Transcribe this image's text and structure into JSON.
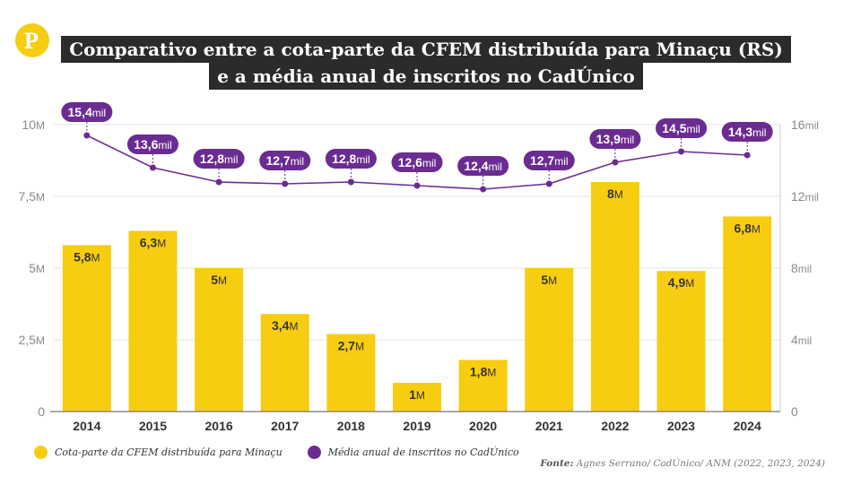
{
  "brand": {
    "logo_letter": "P",
    "brand_color": "#f7cd12"
  },
  "title": {
    "line1": "Comparativo entre a cota-parte da CFEM distribuída para Minaçu (RS)",
    "line2": "e a média anual de inscritos no CadÚnico"
  },
  "chart_data": {
    "type": "bar",
    "categories": [
      "2014",
      "2015",
      "2016",
      "2017",
      "2018",
      "2019",
      "2020",
      "2021",
      "2022",
      "2023",
      "2024"
    ],
    "series": [
      {
        "name": "Cota-parte da CFEM distribuída para Minaçu",
        "type": "bar",
        "axis": "left",
        "color": "#f7cd12",
        "values": [
          5.8,
          6.3,
          5,
          3.4,
          2.7,
          1,
          1.8,
          5,
          8,
          4.9,
          6.8
        ],
        "labels": [
          [
            "5,8",
            "M"
          ],
          [
            "6,3",
            "M"
          ],
          [
            "5",
            "M"
          ],
          [
            "3,4",
            "M"
          ],
          [
            "2,7",
            "M"
          ],
          [
            "1",
            "M"
          ],
          [
            "1,8",
            "M"
          ],
          [
            "5",
            "M"
          ],
          [
            "8",
            "M"
          ],
          [
            "4,9",
            "M"
          ],
          [
            "6,8",
            "M"
          ]
        ]
      },
      {
        "name": "Média anual de inscritos no CadÚnico",
        "type": "line",
        "axis": "right",
        "color": "#6b2c91",
        "values": [
          15.4,
          13.6,
          12.8,
          12.7,
          12.8,
          12.6,
          12.4,
          12.7,
          13.9,
          14.5,
          14.3
        ],
        "labels": [
          [
            "15,4",
            "mil"
          ],
          [
            "13,6",
            "mil"
          ],
          [
            "12,8",
            "mil"
          ],
          [
            "12,7",
            "mil"
          ],
          [
            "12,8",
            "mil"
          ],
          [
            "12,6",
            "mil"
          ],
          [
            "12,4",
            "mil"
          ],
          [
            "12,7",
            "mil"
          ],
          [
            "13,9",
            "mil"
          ],
          [
            "14,5",
            "mil"
          ],
          [
            "14,3",
            "mil"
          ]
        ]
      }
    ],
    "left_axis": {
      "ylim": [
        0,
        10
      ],
      "ticks": [
        0,
        2.5,
        5,
        7.5,
        10
      ],
      "tick_labels": [
        [
          "0",
          ""
        ],
        [
          "2,5",
          "M"
        ],
        [
          "5",
          "M"
        ],
        [
          "7,5",
          "M"
        ],
        [
          "10",
          "M"
        ]
      ]
    },
    "right_axis": {
      "ylim": [
        0,
        16
      ],
      "ticks": [
        0,
        4,
        8,
        12,
        16
      ],
      "tick_labels": [
        [
          "0",
          ""
        ],
        [
          "4",
          "mil"
        ],
        [
          "8",
          "mil"
        ],
        [
          "12",
          "mil"
        ],
        [
          "16",
          "mil"
        ]
      ]
    },
    "grid": true,
    "legend_position": "bottom-left"
  },
  "legend": [
    {
      "label": "Cota-parte da CFEM distribuída para Minaçu",
      "color": "#f7cd12"
    },
    {
      "label": "Média anual de inscritos no CadÚnico",
      "color": "#6b2c91"
    }
  ],
  "source": {
    "key": "Fonte:",
    "text": " Agnes Serrano/ CadÚnico/ ANM (2022, 2023, 2024)"
  }
}
